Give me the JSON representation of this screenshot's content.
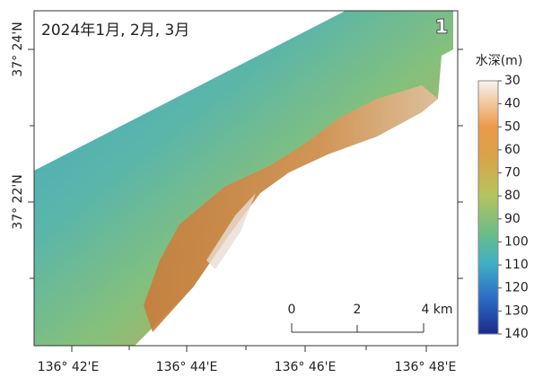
{
  "title": "2024年1月, 2月, 3月",
  "panel_number": "1",
  "colorbar": {
    "label": "水深(m)",
    "ticks": [
      30,
      40,
      50,
      60,
      70,
      80,
      90,
      100,
      110,
      120,
      130,
      140
    ]
  },
  "scale_bar": {
    "labels": [
      "0",
      "2",
      "4 km"
    ]
  },
  "lat_labels": [
    "37° 24'N",
    "37° 22'N"
  ],
  "lon_labels": [
    "136° 42'E",
    "136° 44'E",
    "136° 46'E",
    "136° 48'E"
  ]
}
